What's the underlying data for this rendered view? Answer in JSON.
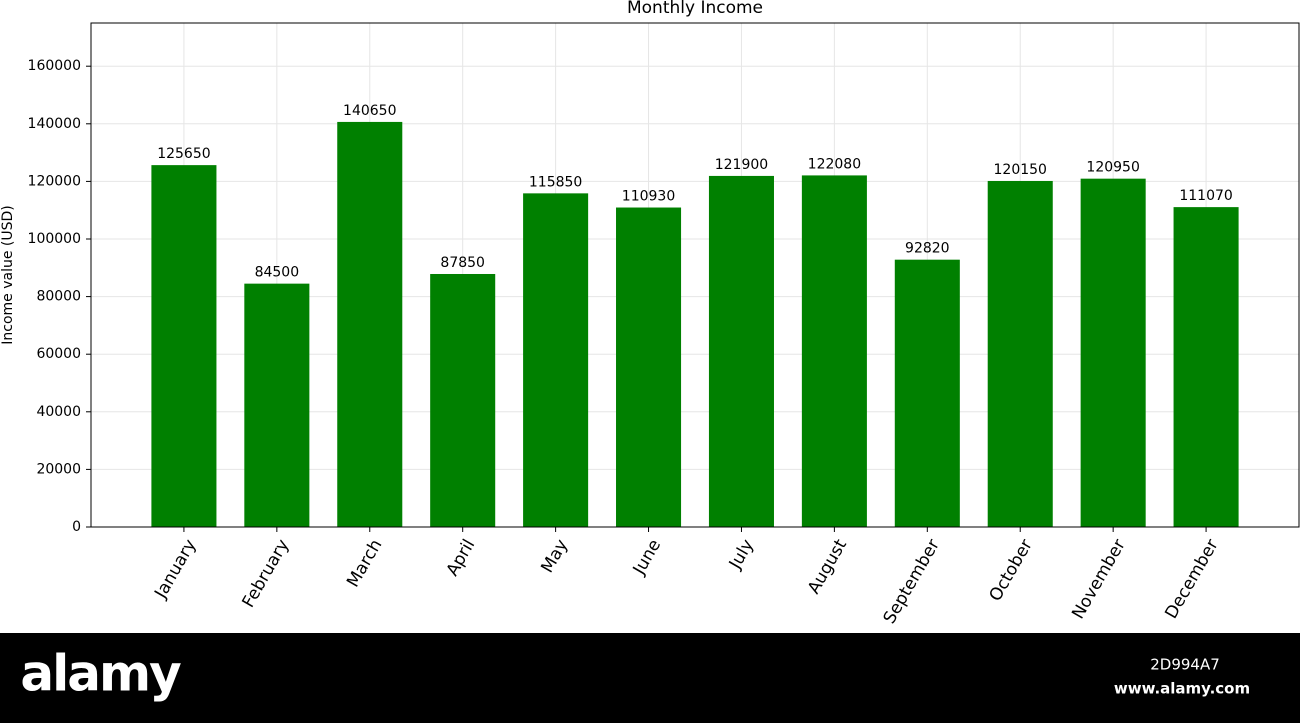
{
  "chart_data": {
    "type": "bar",
    "title": "Monthly Income",
    "ylabel": "Income value (USD)",
    "categories": [
      "January",
      "February",
      "March",
      "April",
      "May",
      "June",
      "July",
      "August",
      "September",
      "October",
      "November",
      "December"
    ],
    "values": [
      125650,
      84500,
      140650,
      87850,
      115850,
      110930,
      121900,
      122080,
      92820,
      120150,
      120950,
      111070
    ],
    "color": "#008000",
    "ylim": [
      0,
      175000
    ],
    "yticks": [
      0,
      20000,
      40000,
      60000,
      80000,
      100000,
      120000,
      140000,
      160000
    ],
    "grid": true
  },
  "footer": {
    "logo": "alamy",
    "image_id": "2D994A7",
    "url": "www.alamy.com"
  }
}
